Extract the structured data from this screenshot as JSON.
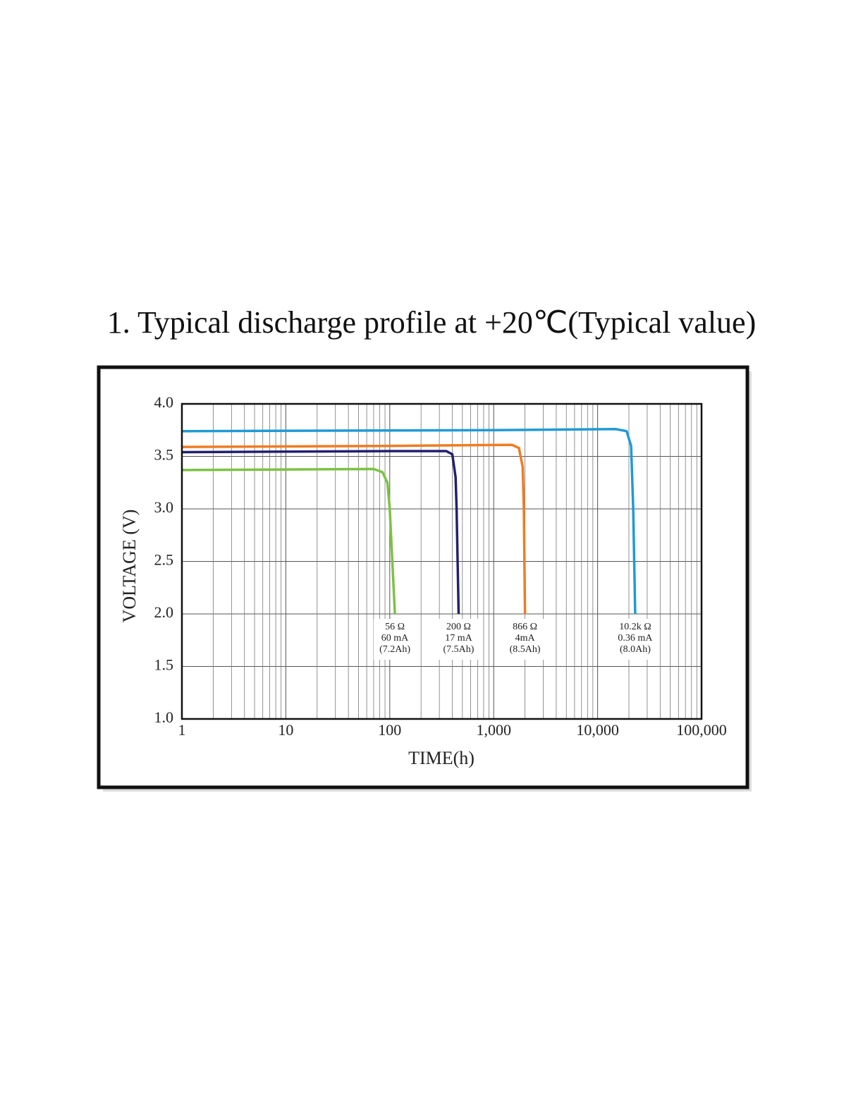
{
  "chart_data": {
    "type": "line",
    "title": "1. Typical discharge profile at +20℃(Typical value)",
    "x_label": "TIME(h)",
    "y_label": "VOLTAGE (V)",
    "xscale": "log",
    "grid": true,
    "xlim": [
      1,
      100000
    ],
    "xticks": [
      1,
      10,
      100,
      {
        "value": 1000,
        "label": "1,000"
      },
      {
        "value": 10000,
        "label": "10,000"
      },
      {
        "value": 100000,
        "label": "100,000"
      }
    ],
    "ylim": [
      1,
      4
    ],
    "yticks": [
      {
        "value": 1,
        "label": "1.0"
      },
      1.5,
      {
        "value": 2,
        "label": "2.0"
      },
      2.5,
      {
        "value": 3,
        "label": "3.0"
      },
      3.5,
      {
        "value": 4,
        "label": "4.0"
      }
    ],
    "series": [
      {
        "name": "10.2k Ω",
        "color": "#1f9ad6",
        "label_lines": [
          "10.2k Ω",
          "0.36 mA",
          "(8.0Ah)"
        ],
        "x": [
          1,
          1000,
          15000,
          19000,
          21000,
          22000,
          23000
        ],
        "values": [
          3.74,
          3.75,
          3.76,
          3.74,
          3.6,
          3.0,
          2.0
        ]
      },
      {
        "name": "866 Ω",
        "color": "#f07c22",
        "label_lines": [
          "866 Ω",
          "4mA",
          "(8.5Ah)"
        ],
        "x": [
          1,
          100,
          1500,
          1750,
          1900,
          1950,
          2000
        ],
        "values": [
          3.59,
          3.6,
          3.61,
          3.58,
          3.4,
          3.0,
          2.0
        ]
      },
      {
        "name": "200 Ω",
        "color": "#23206e",
        "label_lines": [
          "200 Ω",
          "17 mA",
          "(7.5Ah)"
        ],
        "x": [
          1,
          100,
          350,
          400,
          430,
          440,
          460
        ],
        "values": [
          3.54,
          3.55,
          3.55,
          3.52,
          3.3,
          3.0,
          2.0
        ]
      },
      {
        "name": "56 Ω",
        "color": "#7dc242",
        "label_lines": [
          "56 Ω",
          "60 mA",
          "(7.2Ah)"
        ],
        "x": [
          1,
          70,
          85,
          95,
          100,
          112
        ],
        "values": [
          3.37,
          3.38,
          3.35,
          3.25,
          3.0,
          2.0
        ]
      }
    ]
  }
}
